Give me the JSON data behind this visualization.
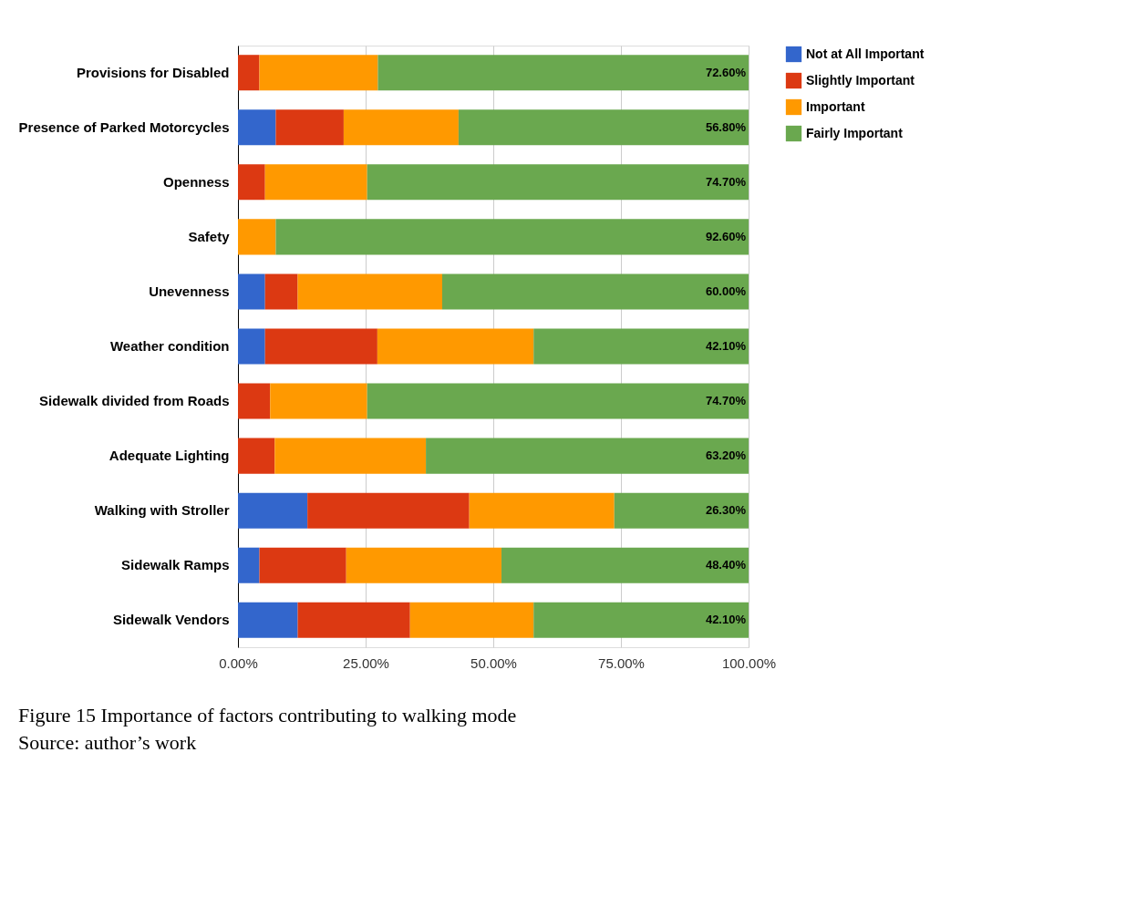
{
  "chart_data": {
    "type": "bar",
    "orientation": "horizontal",
    "stacked": true,
    "categories": [
      "Provisions for Disabled",
      "Presence of Parked Motorcycles",
      "Openness",
      "Safety",
      "Unevenness",
      "Weather condition",
      "Sidewalk divided from Roads",
      "Adequate Lighting",
      "Walking with Stroller",
      "Sidewalk Ramps",
      "Sidewalk Vendors"
    ],
    "series": [
      {
        "name": "Not at All Important",
        "color": "#3366cc",
        "values": [
          null,
          7.4,
          null,
          null,
          5.3,
          5.3,
          null,
          null,
          13.6,
          4.2,
          11.7
        ]
      },
      {
        "name": "Slightly Important",
        "color": "#dc3912",
        "values": [
          4.2,
          13.3,
          5.3,
          null,
          6.4,
          22.0,
          6.3,
          7.2,
          31.7,
          17.0,
          22.0
        ]
      },
      {
        "name": "Important",
        "color": "#ff9900",
        "values": [
          23.2,
          22.5,
          20.0,
          7.4,
          28.3,
          30.6,
          19.0,
          29.6,
          28.4,
          30.4,
          24.2
        ]
      },
      {
        "name": "Fairly Important",
        "color": "#6aa84f",
        "values": [
          72.6,
          56.8,
          74.7,
          92.6,
          60.0,
          42.1,
          74.7,
          63.2,
          26.3,
          48.4,
          42.1
        ],
        "value_labels": [
          "72.60%",
          "56.80%",
          "74.70%",
          "92.60%",
          "60.00%",
          "42.10%",
          "74.70%",
          "63.20%",
          "26.30%",
          "48.40%",
          "42.10%"
        ]
      }
    ],
    "xlim": [
      0,
      100
    ],
    "xticks": [
      {
        "value": 0,
        "label": "0.00%"
      },
      {
        "value": 25,
        "label": "25.00%"
      },
      {
        "value": 50,
        "label": "50.00%"
      },
      {
        "value": 75,
        "label": "75.00%"
      },
      {
        "value": 100,
        "label": "100.00%"
      }
    ],
    "grid": "x",
    "legend": "top right",
    "annotations": [
      "Figure 15 Importance of factors contributing to walking mode",
      "Source: author’s work"
    ]
  }
}
